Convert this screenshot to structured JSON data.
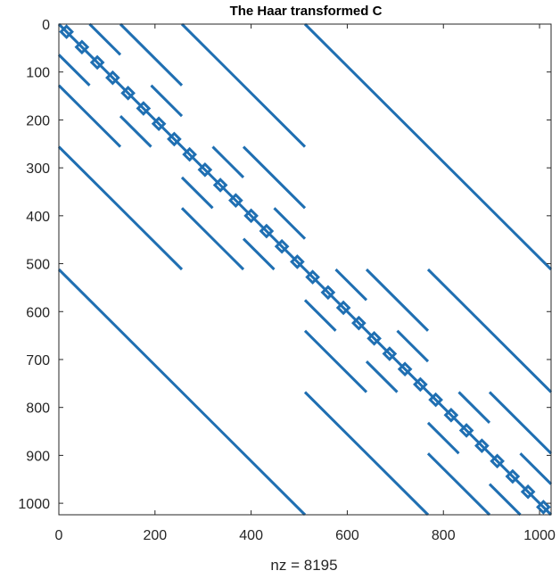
{
  "chart_data": {
    "type": "scatter",
    "subtype": "sparsity-pattern",
    "title": "The Haar transformed C",
    "xlabel": "nz = 8195",
    "ylabel": "",
    "xlim": [
      0,
      1024
    ],
    "ylim": [
      0,
      1024
    ],
    "y_direction": "reversed",
    "x_ticks": [
      0,
      200,
      400,
      600,
      800,
      1000
    ],
    "y_ticks": [
      0,
      100,
      200,
      300,
      400,
      500,
      600,
      700,
      800,
      900,
      1000
    ],
    "x_tick_labels": [
      "0",
      "200",
      "400",
      "600",
      "800",
      "1000"
    ],
    "y_tick_labels": [
      "0",
      "100",
      "200",
      "300",
      "400",
      "500",
      "600",
      "700",
      "800",
      "900",
      "1000"
    ],
    "grid": false,
    "color": "#1f6fb2",
    "nonzeros": 8195,
    "segments": [
      {
        "x": [
          0,
          1024
        ],
        "y": [
          0,
          1024
        ],
        "note": "main diagonal"
      },
      {
        "x": [
          512,
          1024
        ],
        "y": [
          0,
          512
        ]
      },
      {
        "x": [
          0,
          512
        ],
        "y": [
          512,
          1024
        ]
      },
      {
        "x": [
          256,
          512
        ],
        "y": [
          0,
          256
        ]
      },
      {
        "x": [
          0,
          256
        ],
        "y": [
          256,
          512
        ]
      },
      {
        "x": [
          768,
          1024
        ],
        "y": [
          512,
          768
        ]
      },
      {
        "x": [
          512,
          768
        ],
        "y": [
          768,
          1024
        ]
      },
      {
        "x": [
          128,
          256
        ],
        "y": [
          0,
          128
        ]
      },
      {
        "x": [
          0,
          128
        ],
        "y": [
          128,
          256
        ]
      },
      {
        "x": [
          384,
          512
        ],
        "y": [
          256,
          384
        ]
      },
      {
        "x": [
          256,
          384
        ],
        "y": [
          384,
          512
        ]
      },
      {
        "x": [
          640,
          768
        ],
        "y": [
          512,
          640
        ]
      },
      {
        "x": [
          512,
          640
        ],
        "y": [
          640,
          768
        ]
      },
      {
        "x": [
          896,
          1024
        ],
        "y": [
          768,
          896
        ]
      },
      {
        "x": [
          768,
          896
        ],
        "y": [
          896,
          1024
        ]
      },
      {
        "x": [
          64,
          128
        ],
        "y": [
          0,
          64
        ]
      },
      {
        "x": [
          0,
          64
        ],
        "y": [
          64,
          128
        ]
      },
      {
        "x": [
          192,
          256
        ],
        "y": [
          128,
          192
        ]
      },
      {
        "x": [
          128,
          192
        ],
        "y": [
          192,
          256
        ]
      },
      {
        "x": [
          320,
          384
        ],
        "y": [
          256,
          320
        ]
      },
      {
        "x": [
          256,
          320
        ],
        "y": [
          320,
          384
        ]
      },
      {
        "x": [
          448,
          512
        ],
        "y": [
          384,
          448
        ]
      },
      {
        "x": [
          384,
          448
        ],
        "y": [
          448,
          512
        ]
      },
      {
        "x": [
          576,
          640
        ],
        "y": [
          512,
          576
        ]
      },
      {
        "x": [
          512,
          576
        ],
        "y": [
          576,
          640
        ]
      },
      {
        "x": [
          704,
          768
        ],
        "y": [
          640,
          704
        ]
      },
      {
        "x": [
          640,
          704
        ],
        "y": [
          704,
          768
        ]
      },
      {
        "x": [
          832,
          896
        ],
        "y": [
          768,
          832
        ]
      },
      {
        "x": [
          768,
          832
        ],
        "y": [
          832,
          896
        ]
      },
      {
        "x": [
          960,
          1024
        ],
        "y": [
          896,
          960
        ]
      },
      {
        "x": [
          896,
          960
        ],
        "y": [
          960,
          1024
        ]
      }
    ],
    "dense_blocks": [
      {
        "x": [
          0,
          32
        ],
        "y": [
          0,
          32
        ]
      },
      {
        "x": [
          32,
          64
        ],
        "y": [
          32,
          64
        ]
      },
      {
        "x": [
          64,
          96
        ],
        "y": [
          64,
          96
        ]
      },
      {
        "x": [
          96,
          128
        ],
        "y": [
          96,
          128
        ]
      },
      {
        "x": [
          128,
          160
        ],
        "y": [
          128,
          160
        ]
      },
      {
        "x": [
          160,
          192
        ],
        "y": [
          160,
          192
        ]
      },
      {
        "x": [
          192,
          224
        ],
        "y": [
          192,
          224
        ]
      },
      {
        "x": [
          224,
          256
        ],
        "y": [
          224,
          256
        ]
      },
      {
        "x": [
          256,
          288
        ],
        "y": [
          256,
          288
        ]
      },
      {
        "x": [
          288,
          320
        ],
        "y": [
          288,
          320
        ]
      },
      {
        "x": [
          320,
          352
        ],
        "y": [
          320,
          352
        ]
      },
      {
        "x": [
          352,
          384
        ],
        "y": [
          352,
          384
        ]
      },
      {
        "x": [
          384,
          416
        ],
        "y": [
          384,
          416
        ]
      },
      {
        "x": [
          416,
          448
        ],
        "y": [
          416,
          448
        ]
      },
      {
        "x": [
          448,
          480
        ],
        "y": [
          448,
          480
        ]
      },
      {
        "x": [
          480,
          512
        ],
        "y": [
          480,
          512
        ]
      },
      {
        "x": [
          512,
          544
        ],
        "y": [
          512,
          544
        ]
      },
      {
        "x": [
          544,
          576
        ],
        "y": [
          544,
          576
        ]
      },
      {
        "x": [
          576,
          608
        ],
        "y": [
          576,
          608
        ]
      },
      {
        "x": [
          608,
          640
        ],
        "y": [
          608,
          640
        ]
      },
      {
        "x": [
          640,
          672
        ],
        "y": [
          640,
          672
        ]
      },
      {
        "x": [
          672,
          704
        ],
        "y": [
          672,
          704
        ]
      },
      {
        "x": [
          704,
          736
        ],
        "y": [
          704,
          736
        ]
      },
      {
        "x": [
          736,
          768
        ],
        "y": [
          736,
          768
        ]
      },
      {
        "x": [
          768,
          800
        ],
        "y": [
          768,
          800
        ]
      },
      {
        "x": [
          800,
          832
        ],
        "y": [
          800,
          832
        ]
      },
      {
        "x": [
          832,
          864
        ],
        "y": [
          832,
          864
        ]
      },
      {
        "x": [
          864,
          896
        ],
        "y": [
          864,
          896
        ]
      },
      {
        "x": [
          896,
          928
        ],
        "y": [
          896,
          928
        ]
      },
      {
        "x": [
          928,
          960
        ],
        "y": [
          928,
          960
        ]
      },
      {
        "x": [
          960,
          992
        ],
        "y": [
          960,
          992
        ]
      },
      {
        "x": [
          992,
          1024
        ],
        "y": [
          992,
          1024
        ]
      }
    ]
  }
}
